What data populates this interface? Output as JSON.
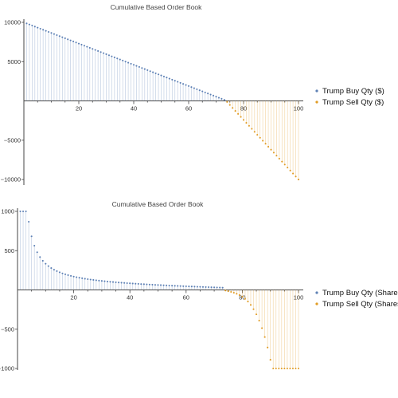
{
  "colors": {
    "buy": "#5E81B5",
    "sell": "#E19C24",
    "axis": "#444444",
    "background": "#FFFFFF"
  },
  "chart_data": [
    {
      "type": "scatter",
      "style": "stem-points",
      "title": "Cumulative Based Order Book",
      "xlabel": "",
      "ylabel": "",
      "xlim": [
        0,
        100
      ],
      "ylim": [
        -10500,
        10000
      ],
      "grid": false,
      "legend": "right",
      "x_ticks": [
        20,
        40,
        60,
        80,
        100
      ],
      "y_ticks": [
        -10000,
        -5000,
        5000,
        10000
      ],
      "x_tick_labels": [
        "20",
        "40",
        "60",
        "80",
        "100"
      ],
      "y_tick_labels": [
        "−10000",
        "−5000",
        "5000",
        "10000"
      ],
      "series": [
        {
          "name": "Trump Buy Qty ($)",
          "x_start": 1,
          "x_end": 73,
          "y_at_start": 9863,
          "y_at_end": 137,
          "shape": "linear"
        },
        {
          "name": "Trump Sell Qty ($)",
          "x_start": 74,
          "x_end": 100,
          "y_at_start": -137,
          "y_at_end": -10000,
          "shape": "linear"
        }
      ]
    },
    {
      "type": "scatter",
      "style": "stem-points",
      "title": "Cumulative Based Order Book",
      "xlabel": "",
      "ylabel": "",
      "xlim": [
        0,
        100
      ],
      "ylim": [
        -1000,
        1000
      ],
      "grid": false,
      "legend": "right",
      "x_ticks": [
        20,
        40,
        60,
        80,
        100
      ],
      "y_ticks": [
        -1000,
        -500,
        500,
        1000
      ],
      "x_tick_labels": [
        "20",
        "40",
        "60",
        "80",
        "100"
      ],
      "y_tick_labels": [
        "−1000",
        "−500",
        "500",
        "1000"
      ],
      "series": [
        {
          "name": "Trump Buy Qty (Shares)",
          "x_start": 1,
          "x_end": 73,
          "y_at_x10": 1000,
          "y_at_x20": 350,
          "y_at_x40": 125,
          "y_at_x60": 45,
          "clipped_at": 1000,
          "shape": "decaying"
        },
        {
          "name": "Trump Sell Qty (Shares)",
          "x_start": 74,
          "x_end": 100,
          "y_at_x80": -60,
          "y_at_x90": -400,
          "clipped_at": -1000,
          "shape": "accelerating-decline"
        }
      ]
    }
  ]
}
